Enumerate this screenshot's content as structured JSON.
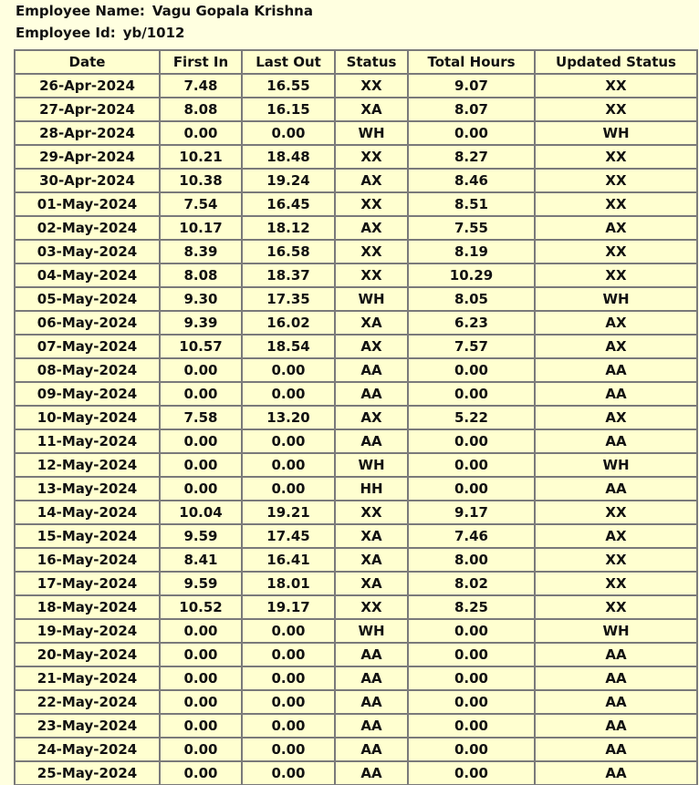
{
  "employee": {
    "name_label": "Employee Name:",
    "name_value": "Vagu Gopala Krishna",
    "id_label": "Employee Id:",
    "id_value": "yb/1012"
  },
  "colors": {
    "background": "#ffffe0",
    "table_bg": "#ffffd0",
    "border": "#7a7a7a",
    "status_red": "#ee1111",
    "status_grey": "#d8d8d8",
    "text": "#111111"
  },
  "table": {
    "headers": [
      "Date",
      "First In",
      "Last Out",
      "Status",
      "Total Hours",
      "Updated Status"
    ],
    "rows": [
      {
        "date": "26-Apr-2024",
        "first_in": "7.48",
        "last_out": "16.55",
        "status": "XX",
        "total_hours": "9.07",
        "updated_status": "XX",
        "updated_color": "black"
      },
      {
        "date": "27-Apr-2024",
        "first_in": "8.08",
        "last_out": "16.15",
        "status": "XA",
        "total_hours": "8.07",
        "updated_status": "XX",
        "updated_color": "black"
      },
      {
        "date": "28-Apr-2024",
        "first_in": "0.00",
        "last_out": "0.00",
        "status": "WH",
        "total_hours": "0.00",
        "updated_status": "WH",
        "updated_color": "grey"
      },
      {
        "date": "29-Apr-2024",
        "first_in": "10.21",
        "last_out": "18.48",
        "status": "XX",
        "total_hours": "8.27",
        "updated_status": "XX",
        "updated_color": "black"
      },
      {
        "date": "30-Apr-2024",
        "first_in": "10.38",
        "last_out": "19.24",
        "status": "AX",
        "total_hours": "8.46",
        "updated_status": "XX",
        "updated_color": "black"
      },
      {
        "date": "01-May-2024",
        "first_in": "7.54",
        "last_out": "16.45",
        "status": "XX",
        "total_hours": "8.51",
        "updated_status": "XX",
        "updated_color": "black"
      },
      {
        "date": "02-May-2024",
        "first_in": "10.17",
        "last_out": "18.12",
        "status": "AX",
        "total_hours": "7.55",
        "updated_status": "AX",
        "updated_color": "red"
      },
      {
        "date": "03-May-2024",
        "first_in": "8.39",
        "last_out": "16.58",
        "status": "XX",
        "total_hours": "8.19",
        "updated_status": "XX",
        "updated_color": "black"
      },
      {
        "date": "04-May-2024",
        "first_in": "8.08",
        "last_out": "18.37",
        "status": "XX",
        "total_hours": "10.29",
        "updated_status": "XX",
        "updated_color": "black"
      },
      {
        "date": "05-May-2024",
        "first_in": "9.30",
        "last_out": "17.35",
        "status": "WH",
        "total_hours": "8.05",
        "updated_status": "WH",
        "updated_color": "grey"
      },
      {
        "date": "06-May-2024",
        "first_in": "9.39",
        "last_out": "16.02",
        "status": "XA",
        "total_hours": "6.23",
        "updated_status": "AX",
        "updated_color": "red"
      },
      {
        "date": "07-May-2024",
        "first_in": "10.57",
        "last_out": "18.54",
        "status": "AX",
        "total_hours": "7.57",
        "updated_status": "AX",
        "updated_color": "red"
      },
      {
        "date": "08-May-2024",
        "first_in": "0.00",
        "last_out": "0.00",
        "status": "AA",
        "total_hours": "0.00",
        "updated_status": "AA",
        "updated_color": "red"
      },
      {
        "date": "09-May-2024",
        "first_in": "0.00",
        "last_out": "0.00",
        "status": "AA",
        "total_hours": "0.00",
        "updated_status": "AA",
        "updated_color": "red"
      },
      {
        "date": "10-May-2024",
        "first_in": "7.58",
        "last_out": "13.20",
        "status": "AX",
        "total_hours": "5.22",
        "updated_status": "AX",
        "updated_color": "red"
      },
      {
        "date": "11-May-2024",
        "first_in": "0.00",
        "last_out": "0.00",
        "status": "AA",
        "total_hours": "0.00",
        "updated_status": "AA",
        "updated_color": "red"
      },
      {
        "date": "12-May-2024",
        "first_in": "0.00",
        "last_out": "0.00",
        "status": "WH",
        "total_hours": "0.00",
        "updated_status": "WH",
        "updated_color": "grey"
      },
      {
        "date": "13-May-2024",
        "first_in": "0.00",
        "last_out": "0.00",
        "status": "HH",
        "total_hours": "0.00",
        "updated_status": "AA",
        "updated_color": "red"
      },
      {
        "date": "14-May-2024",
        "first_in": "10.04",
        "last_out": "19.21",
        "status": "XX",
        "total_hours": "9.17",
        "updated_status": "XX",
        "updated_color": "black"
      },
      {
        "date": "15-May-2024",
        "first_in": "9.59",
        "last_out": "17.45",
        "status": "XA",
        "total_hours": "7.46",
        "updated_status": "AX",
        "updated_color": "red"
      },
      {
        "date": "16-May-2024",
        "first_in": "8.41",
        "last_out": "16.41",
        "status": "XA",
        "total_hours": "8.00",
        "updated_status": "XX",
        "updated_color": "black"
      },
      {
        "date": "17-May-2024",
        "first_in": "9.59",
        "last_out": "18.01",
        "status": "XA",
        "total_hours": "8.02",
        "updated_status": "XX",
        "updated_color": "black"
      },
      {
        "date": "18-May-2024",
        "first_in": "10.52",
        "last_out": "19.17",
        "status": "XX",
        "total_hours": "8.25",
        "updated_status": "XX",
        "updated_color": "black"
      },
      {
        "date": "19-May-2024",
        "first_in": "0.00",
        "last_out": "0.00",
        "status": "WH",
        "total_hours": "0.00",
        "updated_status": "WH",
        "updated_color": "grey"
      },
      {
        "date": "20-May-2024",
        "first_in": "0.00",
        "last_out": "0.00",
        "status": "AA",
        "total_hours": "0.00",
        "updated_status": "AA",
        "updated_color": "red"
      },
      {
        "date": "21-May-2024",
        "first_in": "0.00",
        "last_out": "0.00",
        "status": "AA",
        "total_hours": "0.00",
        "updated_status": "AA",
        "updated_color": "red"
      },
      {
        "date": "22-May-2024",
        "first_in": "0.00",
        "last_out": "0.00",
        "status": "AA",
        "total_hours": "0.00",
        "updated_status": "AA",
        "updated_color": "red"
      },
      {
        "date": "23-May-2024",
        "first_in": "0.00",
        "last_out": "0.00",
        "status": "AA",
        "total_hours": "0.00",
        "updated_status": "AA",
        "updated_color": "red"
      },
      {
        "date": "24-May-2024",
        "first_in": "0.00",
        "last_out": "0.00",
        "status": "AA",
        "total_hours": "0.00",
        "updated_status": "AA",
        "updated_color": "red"
      },
      {
        "date": "25-May-2024",
        "first_in": "0.00",
        "last_out": "0.00",
        "status": "AA",
        "total_hours": "0.00",
        "updated_status": "AA",
        "updated_color": "red"
      }
    ]
  }
}
